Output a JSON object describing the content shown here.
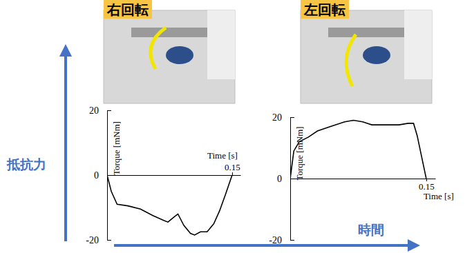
{
  "chart_data": [
    {
      "type": "line",
      "title": "右回転",
      "x_label": "Time [s]",
      "y_label": "Torque [mNm]",
      "x": [
        0,
        0.005,
        0.012,
        0.025,
        0.04,
        0.055,
        0.068,
        0.073,
        0.08,
        0.085,
        0.092,
        0.1,
        0.105,
        0.112,
        0.12,
        0.128,
        0.135,
        0.142,
        0.15
      ],
      "values": [
        0,
        -5,
        -9,
        -9.5,
        -10.5,
        -12.5,
        -14,
        -14.5,
        -13,
        -12,
        -15.5,
        -18,
        -18.5,
        -17.5,
        -17.5,
        -15,
        -11,
        -6,
        0
      ],
      "color": "#000000",
      "xlim": [
        0,
        0.16
      ],
      "xticks": [
        0.15
      ],
      "ylim": [
        -20,
        20
      ],
      "yticks": [
        -20,
        0,
        20
      ],
      "grid": false
    },
    {
      "type": "line",
      "title": "左回転",
      "x_label": "Time [s]",
      "y_label": "Torque [mNm]",
      "x": [
        0,
        0.004,
        0.01,
        0.02,
        0.03,
        0.045,
        0.06,
        0.07,
        0.08,
        0.09,
        0.1,
        0.11,
        0.12,
        0.13,
        0.136,
        0.14,
        0.145,
        0.15
      ],
      "values": [
        0,
        9,
        12,
        13.5,
        15.5,
        17,
        18.5,
        19,
        18.5,
        17.5,
        17.5,
        17.5,
        17.5,
        18,
        18,
        14,
        7,
        0
      ],
      "color": "#000000",
      "xlim": [
        0,
        0.16
      ],
      "xticks": [
        0.15
      ],
      "ylim": [
        -20,
        20
      ],
      "yticks": [
        -20,
        0,
        20
      ],
      "grid": false
    }
  ],
  "annotations": {
    "vertical": "抵抗力",
    "horizontal": "時間"
  }
}
